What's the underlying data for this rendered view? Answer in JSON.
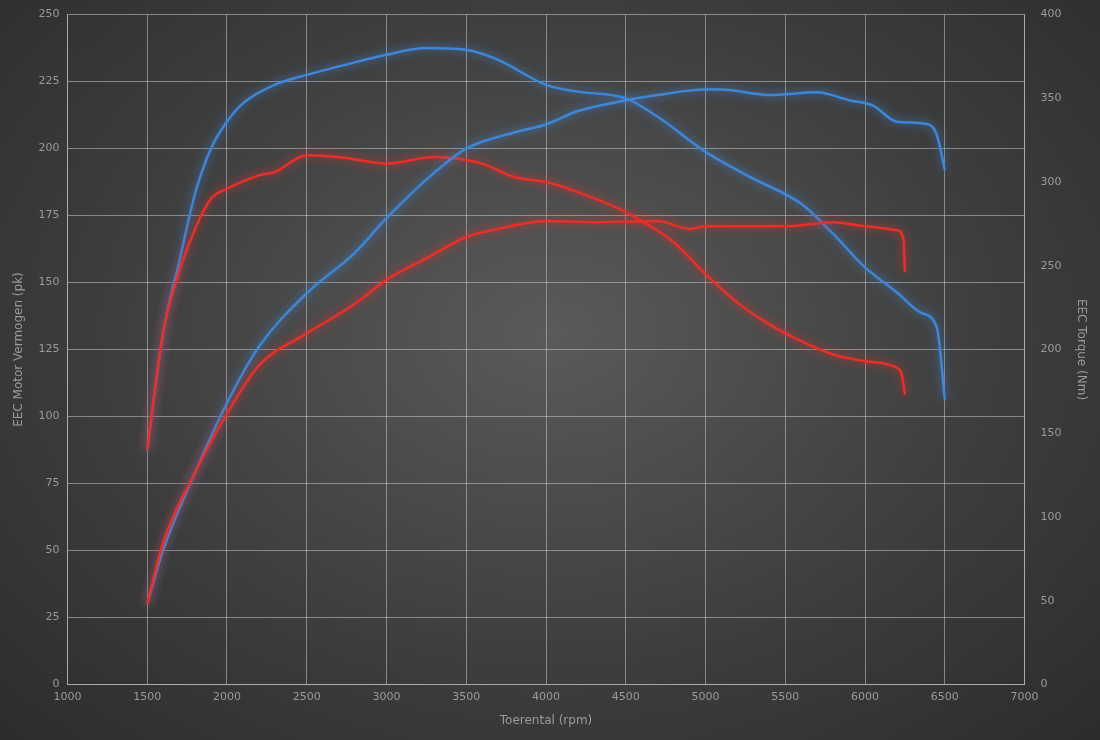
{
  "chart_data": {
    "type": "line",
    "xlabel": "Toerental (rpm)",
    "ylabel": "EEC Motor Vermogen (pk)",
    "y2label": "EEC Torque (Nm)",
    "xlim": [
      1000,
      7000
    ],
    "xticks": [
      1000,
      1500,
      2000,
      2500,
      3000,
      3500,
      4000,
      4500,
      5000,
      5500,
      6000,
      6500,
      7000
    ],
    "ylim": [
      0,
      250
    ],
    "yticks": [
      0,
      25,
      50,
      75,
      100,
      125,
      150,
      175,
      200,
      225,
      250
    ],
    "y2lim": [
      0,
      400
    ],
    "y2ticks": [
      0,
      50,
      100,
      150,
      200,
      250,
      300,
      350,
      400
    ],
    "grid": true,
    "legend": false,
    "marker": "none",
    "line_style": "solid",
    "series": [
      {
        "color": "#e8302a",
        "x": [
          1500,
          1600,
          1800,
          2000,
          2200,
          2500,
          2800,
          3000,
          3250,
          3500,
          3700,
          4000,
          4300,
          4700,
          4900,
          5000,
          5500,
          5800,
          6000,
          6200,
          6240,
          6250
        ],
        "values": [
          30,
          53,
          79,
          101,
          119,
          131,
          142,
          151,
          159,
          167,
          170,
          173,
          172.5,
          173,
          170,
          171,
          171,
          172.5,
          171,
          169.5,
          166.5,
          154
        ]
      },
      {
        "color": "#3f86d6",
        "x": [
          1500,
          1600,
          1800,
          2000,
          2200,
          2500,
          2800,
          3000,
          3300,
          3500,
          3800,
          4000,
          4200,
          4500,
          4700,
          5000,
          5100,
          5400,
          5700,
          5900,
          6050,
          6200,
          6400,
          6450,
          6500
        ],
        "values": [
          30,
          50,
          79,
          105,
          126,
          146,
          161,
          174,
          191,
          200,
          206,
          209,
          214,
          218,
          220,
          222,
          222,
          220,
          221,
          218,
          216,
          210,
          209,
          205,
          192
        ]
      },
      {
        "color": "#e8302a",
        "axis": "y2",
        "x": [
          1500,
          1600,
          1700,
          1800,
          1900,
          2000,
          2200,
          2300,
          2500,
          2700,
          3000,
          3300,
          3600,
          3800,
          4000,
          4200,
          4500,
          4800,
          5000,
          5200,
          5400,
          5600,
          5800,
          6000,
          6200,
          6230,
          6250
        ],
        "values": [
          140,
          210,
          246,
          272,
          290,
          296,
          304,
          306,
          316,
          315,
          311,
          315,
          311,
          303,
          300,
          294,
          282,
          264,
          245,
          228,
          215,
          205,
          197,
          193,
          189,
          185,
          173
        ]
      },
      {
        "color": "#3f86d6",
        "axis": "y2",
        "x": [
          1500,
          1600,
          1700,
          1800,
          1900,
          2000,
          2100,
          2300,
          2500,
          2700,
          3000,
          3250,
          3500,
          3700,
          4000,
          4200,
          4500,
          4700,
          5000,
          5300,
          5600,
          5800,
          6000,
          6200,
          6350,
          6450,
          6500
        ],
        "values": [
          140,
          210,
          252,
          293,
          320,
          336,
          347,
          358,
          364,
          369,
          376,
          380,
          379,
          373,
          358,
          354,
          350,
          339,
          318,
          302,
          287,
          269,
          249,
          234,
          222,
          213,
          170
        ]
      }
    ]
  }
}
